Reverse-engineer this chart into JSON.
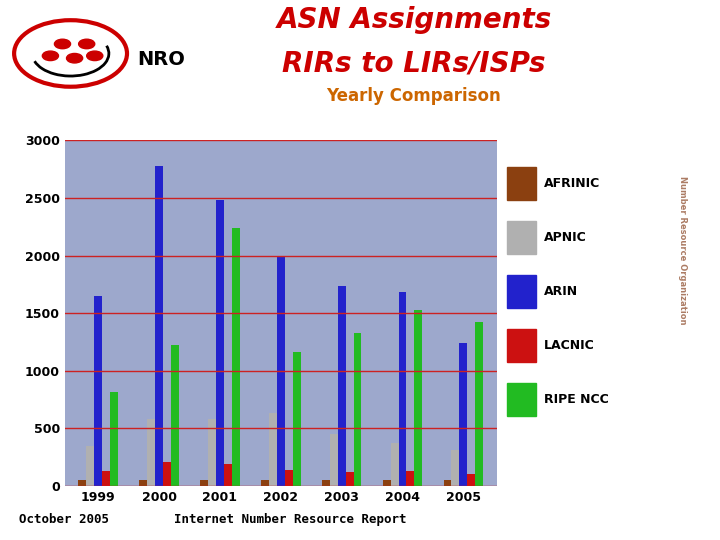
{
  "title_line1": "ASN Assignments",
  "title_line2": "RIRs to LIRs/ISPs",
  "subtitle": "Yearly Comparison",
  "footer_left": "October 2005",
  "footer_right": "Internet Number Resource Report",
  "years": [
    1999,
    2000,
    2001,
    2002,
    2003,
    2004,
    2005
  ],
  "categories": [
    "AFRINIC",
    "APNIC",
    "ARIN",
    "LACNIC",
    "RIPE NCC"
  ],
  "colors": [
    "#8B4010",
    "#B0B0B0",
    "#2222CC",
    "#CC1111",
    "#22BB22"
  ],
  "data": {
    "AFRINIC": [
      50,
      50,
      50,
      50,
      50,
      50,
      50
    ],
    "APNIC": [
      350,
      580,
      580,
      630,
      450,
      370,
      310
    ],
    "ARIN": [
      1650,
      2780,
      2480,
      2000,
      1740,
      1680,
      1240
    ],
    "LACNIC": [
      130,
      210,
      190,
      140,
      120,
      130,
      100
    ],
    "RIPE NCC": [
      820,
      1220,
      2240,
      1160,
      1330,
      1530,
      1420
    ]
  },
  "ylim": [
    0,
    3000
  ],
  "yticks": [
    0,
    500,
    1000,
    1500,
    2000,
    2500,
    3000
  ],
  "chart_bg_color": "#9da8cc",
  "grid_color": "#cc2222",
  "title_color": "#cc0000",
  "subtitle_color": "#cc6600",
  "background_color": "#ffffff",
  "footer_bg": "#cccccc",
  "sidebar_bg": "#cc9977",
  "bar_width": 0.13
}
